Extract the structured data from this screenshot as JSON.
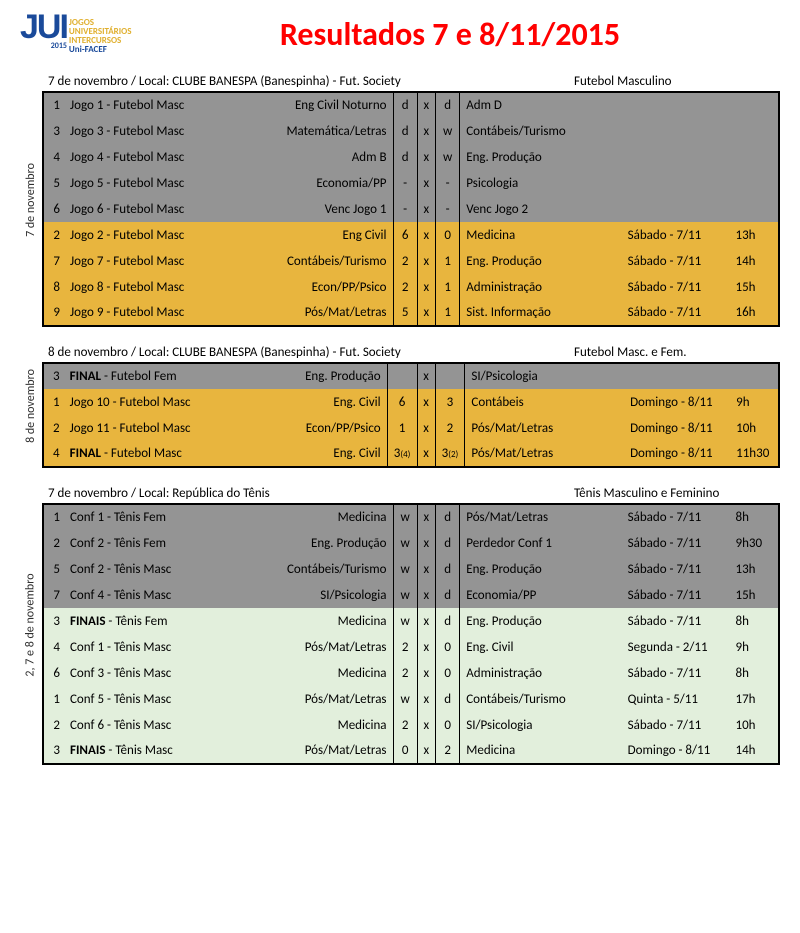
{
  "header": {
    "logo_main": "JUI",
    "logo_lines": [
      "JOGOS",
      "UNIVERSITÁRIOS",
      "INTERCURSOS"
    ],
    "logo_sub": "Uni-FACEF",
    "logo_year": "2015",
    "title": "Resultados 7 e 8/11/2015"
  },
  "sections": [
    {
      "side": "7 de novembro",
      "sub_left": "7 de novembro / Local: CLUBE BANESPA (Banespinha) - Fut. Society",
      "sub_right": "Futebol Masculino",
      "rows": [
        {
          "cls": "gray",
          "n": "1",
          "game": "Jogo 1 - Futebol Masc",
          "tl": "Eng Civil Noturno",
          "s1": "d",
          "s2": "d",
          "tr": "Adm D",
          "day": "",
          "time": ""
        },
        {
          "cls": "gray",
          "n": "3",
          "game": "Jogo 3 - Futebol Masc",
          "tl": "Matemática/Letras",
          "s1": "d",
          "s2": "w",
          "tr": "Contábeis/Turismo",
          "day": "",
          "time": ""
        },
        {
          "cls": "gray",
          "n": "4",
          "game": "Jogo 4 - Futebol Masc",
          "tl": "Adm B",
          "s1": "d",
          "s2": "w",
          "tr": "Eng. Produção",
          "day": "",
          "time": ""
        },
        {
          "cls": "gray",
          "n": "5",
          "game": "Jogo 5 - Futebol Masc",
          "tl": "Economia/PP",
          "s1": "-",
          "s2": "-",
          "tr": "Psicologia",
          "day": "",
          "time": ""
        },
        {
          "cls": "gray",
          "n": "6",
          "game": "Jogo 6 - Futebol Masc",
          "tl": "Venc Jogo 1",
          "s1": "-",
          "s2": "-",
          "tr": "Venc Jogo 2",
          "day": "",
          "time": ""
        },
        {
          "cls": "yellow",
          "n": "2",
          "game": "Jogo 2 - Futebol Masc",
          "tl": "Eng Civil",
          "s1": "6",
          "s2": "0",
          "tr": "Medicina",
          "day": "Sábado - 7/11",
          "time": "13h"
        },
        {
          "cls": "yellow",
          "n": "7",
          "game": "Jogo 7 - Futebol Masc",
          "tl": "Contábeis/Turismo",
          "s1": "2",
          "s2": "1",
          "tr": "Eng. Produção",
          "day": "Sábado - 7/11",
          "time": "14h"
        },
        {
          "cls": "yellow",
          "n": "8",
          "game": "Jogo 8 - Futebol Masc",
          "tl": "Econ/PP/Psico",
          "s1": "2",
          "s2": "1",
          "tr": "Administração",
          "day": "Sábado - 7/11",
          "time": "15h"
        },
        {
          "cls": "yellow",
          "n": "9",
          "game": "Jogo 9 - Futebol Masc",
          "tl": "Pós/Mat/Letras",
          "s1": "5",
          "s2": "1",
          "tr": "Sist. Informação",
          "day": "Sábado - 7/11",
          "time": "16h"
        }
      ]
    },
    {
      "side": "8 de novembro",
      "sub_left": "8 de novembro / Local: CLUBE BANESPA (Banespinha) - Fut. Society",
      "sub_right": "Futebol Masc. e Fem.",
      "rows": [
        {
          "cls": "gray",
          "n": "3",
          "game": "FINAL - Futebol Fem",
          "bold": true,
          "tl": "Eng. Produção",
          "s1": "",
          "s2": "",
          "tr": "SI/Psicologia",
          "day": "",
          "time": ""
        },
        {
          "cls": "yellow",
          "n": "1",
          "game": "Jogo 10 - Futebol Masc",
          "tl": "Eng. Civil",
          "s1": "6",
          "s2": "3",
          "tr": "Contábeis",
          "day": "Domingo - 8/11",
          "time": "9h"
        },
        {
          "cls": "yellow",
          "n": "2",
          "game": "Jogo 11 - Futebol Masc",
          "tl": "Econ/PP/Psico",
          "s1": "1",
          "s2": "2",
          "tr": "Pós/Mat/Letras",
          "day": "Domingo - 8/11",
          "time": "10h"
        },
        {
          "cls": "yellow",
          "n": "4",
          "game": "FINAL - Futebol Masc",
          "bold": true,
          "tl": "Eng. Civil",
          "s1": "3",
          "s1s": "(4)",
          "s2": "3",
          "s2s": "(2)",
          "tr": "Pós/Mat/Letras",
          "day": "Domingo - 8/11",
          "time": "11h30"
        }
      ]
    },
    {
      "side": "2, 7 e 8 de novembro",
      "sub_left": "7 de novembro / Local: República do Tênis",
      "sub_right": "Tênis Masculino e Feminino",
      "rows": [
        {
          "cls": "gray",
          "n": "1",
          "game": "Conf 1 - Tênis Fem",
          "tl": "Medicina",
          "s1": "w",
          "s2": "d",
          "tr": "Pós/Mat/Letras",
          "day": "Sábado - 7/11",
          "time": "8h"
        },
        {
          "cls": "gray",
          "n": "2",
          "game": "Conf 2 - Tênis Fem",
          "tl": "Eng. Produção",
          "s1": "w",
          "s2": "d",
          "tr": "Perdedor Conf 1",
          "day": "Sábado - 7/11",
          "time": "9h30"
        },
        {
          "cls": "gray",
          "n": "5",
          "game": "Conf 2 - Tênis Masc",
          "tl": "Contábeis/Turismo",
          "s1": "w",
          "s2": "d",
          "tr": "Eng. Produção",
          "day": "Sábado - 7/11",
          "time": "13h"
        },
        {
          "cls": "gray",
          "n": "7",
          "game": "Conf 4 - Tênis Masc",
          "tl": "SI/Psicologia",
          "s1": "w",
          "s2": "d",
          "tr": "Economia/PP",
          "day": "Sábado - 7/11",
          "time": "15h"
        },
        {
          "cls": "green",
          "n": "3",
          "game": "FINAIS - Tênis Fem",
          "bold": true,
          "tl": "Medicina",
          "s1": "w",
          "s2": "d",
          "tr": "Eng. Produção",
          "day": "Sábado - 7/11",
          "time": "8h"
        },
        {
          "cls": "green",
          "n": "4",
          "game": "Conf 1 - Tênis Masc",
          "tl": "Pós/Mat/Letras",
          "s1": "2",
          "s2": "0",
          "tr": "Eng. Civil",
          "day": "Segunda - 2/11",
          "time": "9h"
        },
        {
          "cls": "green",
          "n": "6",
          "game": "Conf 3 - Tênis Masc",
          "tl": "Medicina",
          "s1": "2",
          "s2": "0",
          "tr": "Administração",
          "day": "Sábado - 7/11",
          "time": "8h"
        },
        {
          "cls": "green",
          "n": "1",
          "game": "Conf 5 - Tênis Masc",
          "tl": "Pós/Mat/Letras",
          "s1": "w",
          "s2": "d",
          "tr": "Contábeis/Turismo",
          "day": "Quinta - 5/11",
          "time": "17h"
        },
        {
          "cls": "green",
          "n": "2",
          "game": "Conf 6 - Tênis Masc",
          "tl": "Medicina",
          "s1": "2",
          "s2": "0",
          "tr": "SI/Psicologia",
          "day": "Sábado - 7/11",
          "time": "10h"
        },
        {
          "cls": "green",
          "n": "3",
          "game": "FINAIS - Tênis Masc",
          "bold": true,
          "tl": "Pós/Mat/Letras",
          "s1": "0",
          "s2": "2",
          "tr": "Medicina",
          "day": "Domingo - 8/11",
          "time": "14h"
        }
      ]
    }
  ],
  "colors": {
    "gray": "#949494",
    "yellow": "#e8b53e",
    "green": "#e2efdc",
    "title": "#ff0000",
    "logo_blue": "#1a4a9a",
    "logo_gold": "#e0b030"
  }
}
